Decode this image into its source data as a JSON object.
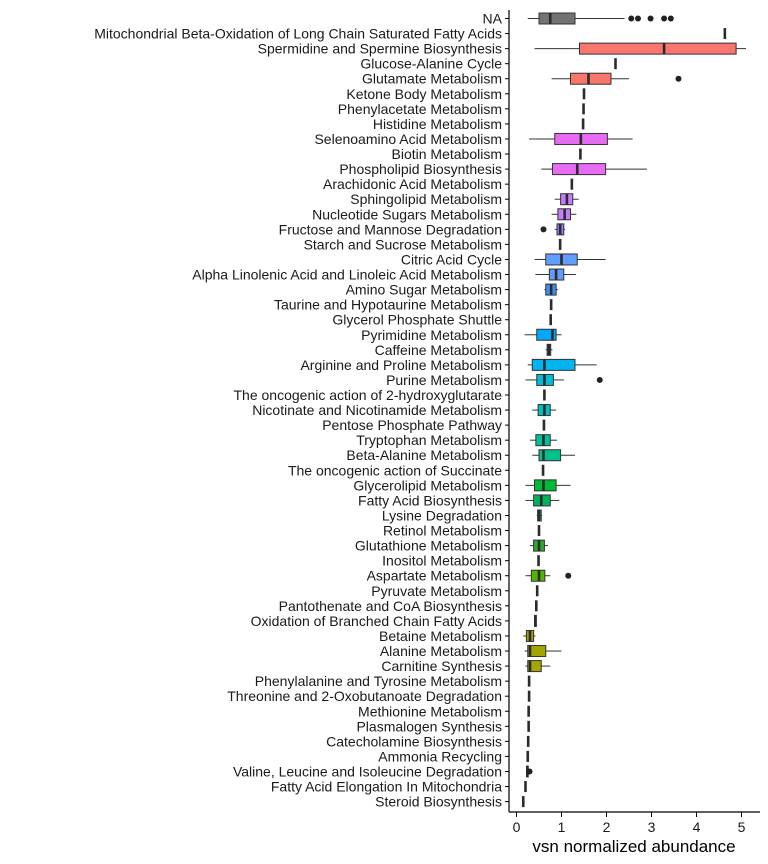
{
  "chart_data": {
    "type": "boxplot",
    "title": "",
    "xlabel": "vsn normalized abundance",
    "ylabel": "",
    "xlim": [
      -0.28,
      5.1
    ],
    "xticks": [
      0,
      1,
      2,
      3,
      4,
      5
    ],
    "xtick_labels": [
      "0",
      "1",
      "2",
      "3",
      "4",
      "5"
    ],
    "legend": "none",
    "grid": false,
    "categories": [
      {
        "label": "NA",
        "min": 0.25,
        "q1": 0.5,
        "median": 0.75,
        "q3": 1.3,
        "max": 2.4,
        "outliers": [
          2.55,
          2.7,
          2.98,
          3.28,
          3.43
        ],
        "color": "#737373"
      },
      {
        "label": "Mitochondrial Beta-Oxidation of Long Chain Saturated Fatty Acids",
        "min": 4.63,
        "q1": 4.63,
        "median": 4.63,
        "q3": 4.63,
        "max": 4.63,
        "outliers": [],
        "color": "#F8766D"
      },
      {
        "label": "Spermidine and Spermine Biosynthesis",
        "min": 0.4,
        "q1": 1.4,
        "median": 3.28,
        "q3": 4.88,
        "max": 5.1,
        "outliers": [],
        "color": "#F8766D"
      },
      {
        "label": "Glucose-Alanine Cycle",
        "min": 2.2,
        "q1": 2.2,
        "median": 2.2,
        "q3": 2.2,
        "max": 2.2,
        "outliers": [],
        "color": "#F8766D"
      },
      {
        "label": "Glutamate Metabolism",
        "min": 0.78,
        "q1": 1.2,
        "median": 1.6,
        "q3": 2.1,
        "max": 2.5,
        "outliers": [
          3.6
        ],
        "color": "#F8766D"
      },
      {
        "label": "Ketone Body Metabolism",
        "min": 1.5,
        "q1": 1.5,
        "median": 1.5,
        "q3": 1.5,
        "max": 1.5,
        "outliers": [],
        "color": "#F8766D"
      },
      {
        "label": "Phenylacetate Metabolism",
        "min": 1.49,
        "q1": 1.49,
        "median": 1.49,
        "q3": 1.49,
        "max": 1.49,
        "outliers": [],
        "color": "#F8766D"
      },
      {
        "label": "Histidine Metabolism",
        "min": 1.48,
        "q1": 1.48,
        "median": 1.48,
        "q3": 1.48,
        "max": 1.48,
        "outliers": [],
        "color": "#F8766D"
      },
      {
        "label": "Selenoamino Acid Metabolism",
        "min": 0.28,
        "q1": 0.85,
        "median": 1.43,
        "q3": 2.02,
        "max": 2.58,
        "outliers": [],
        "color": "#E76BF3"
      },
      {
        "label": "Biotin Metabolism",
        "min": 1.42,
        "q1": 1.42,
        "median": 1.42,
        "q3": 1.42,
        "max": 1.42,
        "outliers": [],
        "color": "#E76BF3"
      },
      {
        "label": "Phospholipid Biosynthesis",
        "min": 0.55,
        "q1": 0.8,
        "median": 1.35,
        "q3": 1.98,
        "max": 2.9,
        "outliers": [],
        "color": "#E76BF3"
      },
      {
        "label": "Arachidonic Acid Metabolism",
        "min": 1.23,
        "q1": 1.23,
        "median": 1.23,
        "q3": 1.23,
        "max": 1.23,
        "outliers": [],
        "color": "#E76BF3"
      },
      {
        "label": "Sphingolipid Metabolism",
        "min": 0.85,
        "q1": 0.98,
        "median": 1.12,
        "q3": 1.25,
        "max": 1.38,
        "outliers": [],
        "color": "#C77CFF"
      },
      {
        "label": "Nucleotide Sugars Metabolism",
        "min": 0.78,
        "q1": 0.92,
        "median": 1.07,
        "q3": 1.2,
        "max": 1.33,
        "outliers": [],
        "color": "#C77CFF"
      },
      {
        "label": "Fructose and Mannose Degradation",
        "min": 0.85,
        "q1": 0.9,
        "median": 0.97,
        "q3": 1.05,
        "max": 1.08,
        "outliers": [
          0.6
        ],
        "color": "#9E7BFF"
      },
      {
        "label": "Starch and Sucrose Metabolism",
        "min": 0.97,
        "q1": 0.97,
        "median": 0.97,
        "q3": 0.97,
        "max": 0.97,
        "outliers": [],
        "color": "#9E7BFF"
      },
      {
        "label": "Citric Acid Cycle",
        "min": 0.4,
        "q1": 0.65,
        "median": 1.0,
        "q3": 1.35,
        "max": 1.98,
        "outliers": [],
        "color": "#619CFF"
      },
      {
        "label": "Alpha Linolenic Acid and Linoleic Acid Metabolism",
        "min": 0.42,
        "q1": 0.73,
        "median": 0.88,
        "q3": 1.05,
        "max": 1.32,
        "outliers": [],
        "color": "#619CFF"
      },
      {
        "label": "Amino Sugar Metabolism",
        "min": 0.62,
        "q1": 0.65,
        "median": 0.77,
        "q3": 0.88,
        "max": 0.92,
        "outliers": [],
        "color": "#3F8EF0"
      },
      {
        "label": "Taurine and Hypotaurine Metabolism",
        "min": 0.77,
        "q1": 0.77,
        "median": 0.77,
        "q3": 0.77,
        "max": 0.77,
        "outliers": [],
        "color": "#3F8EF0"
      },
      {
        "label": "Glycerol Phosphate Shuttle",
        "min": 0.76,
        "q1": 0.76,
        "median": 0.76,
        "q3": 0.76,
        "max": 0.76,
        "outliers": [],
        "color": "#3F8EF0"
      },
      {
        "label": "Pyrimidine Metabolism",
        "min": 0.18,
        "q1": 0.45,
        "median": 0.8,
        "q3": 0.88,
        "max": 1.0,
        "outliers": [],
        "color": "#00A9FF"
      },
      {
        "label": "Caffeine Metabolism",
        "min": 0.65,
        "q1": 0.68,
        "median": 0.72,
        "q3": 0.76,
        "max": 0.8,
        "outliers": [],
        "color": "#00A9FF"
      },
      {
        "label": "Arginine and Proline Metabolism",
        "min": 0.25,
        "q1": 0.35,
        "median": 0.62,
        "q3": 1.3,
        "max": 1.78,
        "outliers": [],
        "color": "#00B4EF"
      },
      {
        "label": "Purine Metabolism",
        "min": 0.2,
        "q1": 0.45,
        "median": 0.62,
        "q3": 0.82,
        "max": 1.05,
        "outliers": [
          1.85
        ],
        "color": "#00BCD8"
      },
      {
        "label": "The oncogenic action of 2-hydroxyglutarate",
        "min": 0.62,
        "q1": 0.62,
        "median": 0.62,
        "q3": 0.62,
        "max": 0.62,
        "outliers": [],
        "color": "#00BFC4"
      },
      {
        "label": "Nicotinate and Nicotinamide Metabolism",
        "min": 0.35,
        "q1": 0.48,
        "median": 0.62,
        "q3": 0.75,
        "max": 0.88,
        "outliers": [],
        "color": "#00BFC4"
      },
      {
        "label": "Pentose Phosphate Pathway",
        "min": 0.61,
        "q1": 0.61,
        "median": 0.61,
        "q3": 0.61,
        "max": 0.61,
        "outliers": [],
        "color": "#00BFB0"
      },
      {
        "label": "Tryptophan Metabolism",
        "min": 0.3,
        "q1": 0.43,
        "median": 0.6,
        "q3": 0.75,
        "max": 0.9,
        "outliers": [],
        "color": "#00C19A"
      },
      {
        "label": "Beta-Alanine Metabolism",
        "min": 0.35,
        "q1": 0.5,
        "median": 0.6,
        "q3": 0.98,
        "max": 1.3,
        "outliers": [],
        "color": "#00C08B"
      },
      {
        "label": "The oncogenic action of Succinate",
        "min": 0.59,
        "q1": 0.59,
        "median": 0.59,
        "q3": 0.59,
        "max": 0.59,
        "outliers": [],
        "color": "#00BE67"
      },
      {
        "label": "Glycerolipid Metabolism",
        "min": 0.2,
        "q1": 0.4,
        "median": 0.6,
        "q3": 0.88,
        "max": 1.2,
        "outliers": [],
        "color": "#00BA38"
      },
      {
        "label": "Fatty Acid Biosynthesis",
        "min": 0.2,
        "q1": 0.38,
        "median": 0.55,
        "q3": 0.75,
        "max": 0.95,
        "outliers": [],
        "color": "#00B35A"
      },
      {
        "label": "Lysine Degradation",
        "min": 0.45,
        "q1": 0.47,
        "median": 0.5,
        "q3": 0.55,
        "max": 0.57,
        "outliers": [],
        "color": "#1FAE3E"
      },
      {
        "label": "Retinol Metabolism",
        "min": 0.5,
        "q1": 0.5,
        "median": 0.5,
        "q3": 0.5,
        "max": 0.5,
        "outliers": [],
        "color": "#1FAE3E"
      },
      {
        "label": "Glutathione Metabolism",
        "min": 0.3,
        "q1": 0.38,
        "median": 0.5,
        "q3": 0.62,
        "max": 0.7,
        "outliers": [],
        "color": "#2DAA2A"
      },
      {
        "label": "Inositol Metabolism",
        "min": 0.49,
        "q1": 0.49,
        "median": 0.49,
        "q3": 0.49,
        "max": 0.49,
        "outliers": [],
        "color": "#53B400"
      },
      {
        "label": "Aspartate Metabolism",
        "min": 0.2,
        "q1": 0.33,
        "median": 0.5,
        "q3": 0.63,
        "max": 0.75,
        "outliers": [
          1.15
        ],
        "color": "#53B400"
      },
      {
        "label": "Pyruvate Metabolism",
        "min": 0.46,
        "q1": 0.46,
        "median": 0.46,
        "q3": 0.46,
        "max": 0.46,
        "outliers": [],
        "color": "#7CAE00"
      },
      {
        "label": "Pantothenate and CoA Biosynthesis",
        "min": 0.44,
        "q1": 0.44,
        "median": 0.44,
        "q3": 0.44,
        "max": 0.44,
        "outliers": [],
        "color": "#7CAE00"
      },
      {
        "label": "Oxidation of Branched Chain Fatty Acids",
        "min": 0.4,
        "q1": 0.4,
        "median": 0.42,
        "q3": 0.44,
        "max": 0.44,
        "outliers": [],
        "color": "#7CAE00"
      },
      {
        "label": "Betaine Metabolism",
        "min": 0.15,
        "q1": 0.22,
        "median": 0.3,
        "q3": 0.38,
        "max": 0.42,
        "outliers": [],
        "color": "#A3A500"
      },
      {
        "label": "Alanine Metabolism",
        "min": 0.18,
        "q1": 0.25,
        "median": 0.3,
        "q3": 0.65,
        "max": 1.0,
        "outliers": [],
        "color": "#A3A500"
      },
      {
        "label": "Carnitine Synthesis",
        "min": 0.2,
        "q1": 0.25,
        "median": 0.3,
        "q3": 0.55,
        "max": 0.75,
        "outliers": [],
        "color": "#A3A500"
      },
      {
        "label": "Phenylalanine and Tyrosine Metabolism",
        "min": 0.28,
        "q1": 0.28,
        "median": 0.28,
        "q3": 0.28,
        "max": 0.28,
        "outliers": [],
        "color": "#B79F00"
      },
      {
        "label": "Threonine and 2-Oxobutanoate Degradation",
        "min": 0.28,
        "q1": 0.28,
        "median": 0.28,
        "q3": 0.28,
        "max": 0.28,
        "outliers": [],
        "color": "#B79F00"
      },
      {
        "label": "Methionine Metabolism",
        "min": 0.27,
        "q1": 0.27,
        "median": 0.27,
        "q3": 0.27,
        "max": 0.27,
        "outliers": [],
        "color": "#B79F00"
      },
      {
        "label": "Plasmalogen Synthesis",
        "min": 0.27,
        "q1": 0.27,
        "median": 0.27,
        "q3": 0.27,
        "max": 0.27,
        "outliers": [],
        "color": "#C49A00"
      },
      {
        "label": "Catecholamine Biosynthesis",
        "min": 0.26,
        "q1": 0.26,
        "median": 0.26,
        "q3": 0.26,
        "max": 0.26,
        "outliers": [],
        "color": "#C49A00"
      },
      {
        "label": "Ammonia Recycling",
        "min": 0.25,
        "q1": 0.25,
        "median": 0.25,
        "q3": 0.25,
        "max": 0.25,
        "outliers": [],
        "color": "#C49A00"
      },
      {
        "label": "Valine, Leucine and Isoleucine Degradation",
        "min": 0.22,
        "q1": 0.23,
        "median": 0.24,
        "q3": 0.26,
        "max": 0.27,
        "outliers": [
          0.29
        ],
        "color": "#D89000"
      },
      {
        "label": "Fatty Acid Elongation In Mitochondria",
        "min": 0.2,
        "q1": 0.2,
        "median": 0.2,
        "q3": 0.2,
        "max": 0.2,
        "outliers": [],
        "color": "#D89000"
      },
      {
        "label": "Steroid Biosynthesis",
        "min": 0.15,
        "q1": 0.15,
        "median": 0.15,
        "q3": 0.15,
        "max": 0.15,
        "outliers": [],
        "color": "#E38900"
      }
    ]
  }
}
